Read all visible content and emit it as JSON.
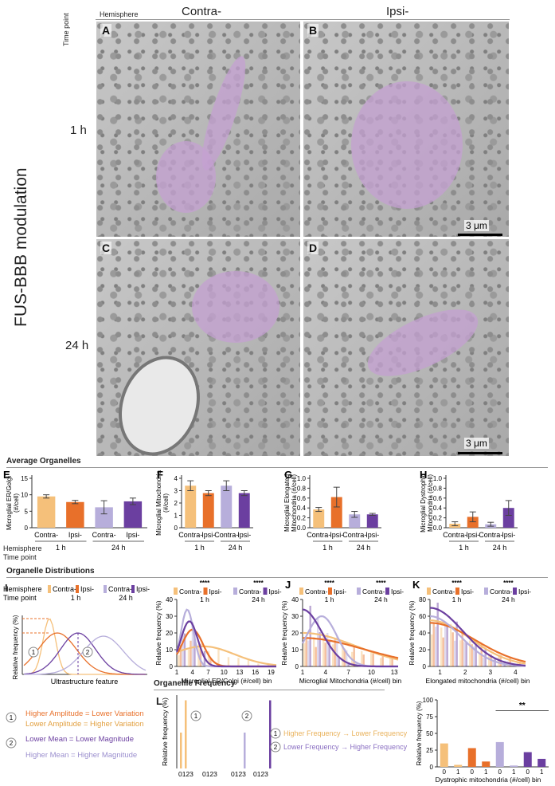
{
  "header": {
    "hemisphere_label": "Hemisphere",
    "contra": "Contra-",
    "ipsi": "Ipsi-",
    "time_point_label": "Time point",
    "side_title": "FUS-BBB modulation",
    "row1": "1 h",
    "row2": "24 h",
    "scale": "3 μm"
  },
  "panels": {
    "A": "A",
    "B": "B",
    "C": "C",
    "D": "D",
    "E": "E",
    "F": "F",
    "G": "G",
    "H": "H",
    "I": "I",
    "J": "J",
    "K": "K",
    "L": "L"
  },
  "sections": {
    "avg": "Average Organelles",
    "dist": "Organelle Distributions",
    "freq": "Organellle Frequency"
  },
  "colors": {
    "contra_1h": "#f5c07a",
    "ipsi_1h": "#e8702a",
    "contra_24h": "#b7aedb",
    "ipsi_24h": "#6b3fa0"
  },
  "groups": {
    "contra": "Contra-",
    "ipsi": "Ipsi-",
    "h1": "1 h",
    "h24": "24 h",
    "hemisphere": "Hemisphere",
    "time_point": "Time point"
  },
  "chart_data": [
    {
      "id": "E",
      "type": "bar",
      "ylabel": "Microglial ER/Golgi (#/cell)",
      "ylim": [
        0,
        15
      ],
      "yticks": [
        0,
        5,
        10,
        15
      ],
      "categories": [
        "Contra- 1 h",
        "Ipsi- 1 h",
        "Contra- 24 h",
        "Ipsi- 24 h"
      ],
      "values": [
        9.5,
        7.8,
        6.2,
        8.0
      ],
      "errors": [
        0.5,
        0.5,
        2.0,
        1.0
      ]
    },
    {
      "id": "F",
      "type": "bar",
      "ylabel": "Microglial Mitochondria (#/cell)",
      "ylim": [
        0,
        4
      ],
      "yticks": [
        0,
        1,
        2,
        3,
        4
      ],
      "categories": [
        "Contra- 1 h",
        "Ipsi- 1 h",
        "Contra- 24 h",
        "Ipsi- 24 h"
      ],
      "values": [
        3.4,
        2.8,
        3.4,
        2.8
      ],
      "errors": [
        0.4,
        0.2,
        0.4,
        0.2
      ]
    },
    {
      "id": "G",
      "type": "bar",
      "ylabel": "Microglial Elongated Mitochondria (#/cell)",
      "ylim": [
        0,
        1.0
      ],
      "yticks": [
        0.0,
        0.2,
        0.4,
        0.6,
        0.8,
        1.0
      ],
      "categories": [
        "Contra- 1 h",
        "Ipsi- 1 h",
        "Contra- 24 h",
        "Ipsi- 24 h"
      ],
      "values": [
        0.37,
        0.62,
        0.27,
        0.27
      ],
      "errors": [
        0.04,
        0.2,
        0.06,
        0.02
      ]
    },
    {
      "id": "H",
      "type": "bar",
      "ylabel": "Microglial Dystrophic Mitochondria (#/cell)",
      "ylim": [
        0,
        1.0
      ],
      "yticks": [
        0.0,
        0.2,
        0.4,
        0.6,
        0.8,
        1.0
      ],
      "categories": [
        "Contra- 1 h",
        "Ipsi- 1 h",
        "Contra- 24 h",
        "Ipsi- 24 h"
      ],
      "values": [
        0.08,
        0.22,
        0.07,
        0.4
      ],
      "errors": [
        0.04,
        0.1,
        0.04,
        0.15
      ]
    },
    {
      "id": "ER",
      "type": "line",
      "xlabel": "Microglial ER/Golgi (#/cell) bin",
      "ylabel": "Relative frequency (%)",
      "ylim": [
        0,
        40
      ],
      "yticks": [
        0,
        10,
        20,
        30,
        40
      ],
      "xticks": [
        1,
        4,
        7,
        10,
        13,
        16,
        19
      ],
      "sig": [
        "****",
        "****"
      ],
      "series": [
        {
          "name": "Contra- 1 h",
          "peak": 12,
          "mean": 5,
          "sd": 5
        },
        {
          "name": "Ipsi- 1 h",
          "peak": 22,
          "mean": 4,
          "sd": 2
        },
        {
          "name": "Contra- 24 h",
          "peak": 34,
          "mean": 3,
          "sd": 1
        },
        {
          "name": "Ipsi- 24 h",
          "peak": 27,
          "mean": 3.5,
          "sd": 1.5
        }
      ]
    },
    {
      "id": "J",
      "type": "line",
      "xlabel": "Microglial Mitochondria (#/cell) bin",
      "ylabel": "Relative frequency (%)",
      "ylim": [
        0,
        40
      ],
      "yticks": [
        0,
        10,
        20,
        30,
        40
      ],
      "xticks": [
        1,
        4,
        7,
        10,
        13
      ],
      "sig": [
        "****",
        "****"
      ]
    },
    {
      "id": "K",
      "type": "line",
      "xlabel": "Elongated mitochondria (#/cell) bin",
      "ylabel": "Relative frequency (%)",
      "ylim": [
        0,
        80
      ],
      "yticks": [
        0,
        20,
        40,
        60,
        80
      ],
      "xticks": [
        1,
        2,
        3,
        4
      ],
      "sig": [
        "****",
        "****"
      ]
    },
    {
      "id": "Lbars",
      "type": "bar",
      "xlabel": "Dystrophic mitochondria (#/cell) bin",
      "ylabel": "Relative frequency (%)",
      "ylim": [
        0,
        100
      ],
      "yticks": [
        0,
        25,
        50,
        75,
        100
      ],
      "categories": [
        "0",
        "1",
        "0",
        "1",
        "0",
        "1",
        "0",
        "1"
      ],
      "values": [
        35,
        3,
        28,
        8,
        37,
        2,
        22,
        12
      ],
      "sig": "**"
    }
  ],
  "legendI": {
    "xaxis": "Ultrastructure feature",
    "yaxis": "Relative frequency (%)",
    "l1a": "Higher Amplitude = Lower Variation",
    "l1b": "Lower Amplitude = Higher Variation",
    "l2a": "Lower Mean = Lower Magnitude",
    "l2b": "Higher Mean = Higher Magnitude",
    "n1": "1",
    "n2": "2"
  },
  "legendL": {
    "yaxis": "Relative frequency (%)",
    "r1": "Higher Frequency → Lower Frequency",
    "r2": "Lower Frequency → Higher Frequency",
    "ticks": "0123",
    "n1": "1",
    "n2": "2"
  }
}
